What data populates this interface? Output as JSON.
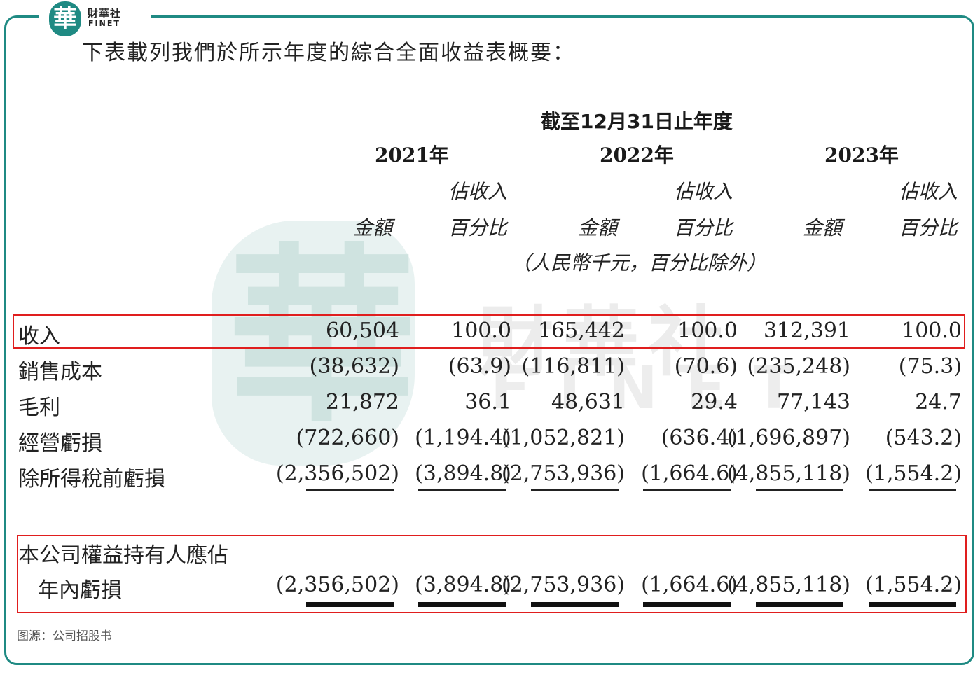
{
  "brand": {
    "logo_char": "華",
    "name_cn": "財華社",
    "name_en": "FINET"
  },
  "watermark": {
    "char": "華",
    "cn": "財華社",
    "en": "FINET"
  },
  "intro": "下表載列我們於所示年度的綜合全面收益表概要：",
  "period_header": "截至12月31日止年度",
  "years": [
    "2021年",
    "2022年",
    "2023年"
  ],
  "col_labels": {
    "pct_line1": "佔收入",
    "pct_line2": "百分比",
    "amount": "金額"
  },
  "unit_note": "（人民幣千元，百分比除外）",
  "rows": [
    {
      "label": "收入",
      "values": [
        "60,504",
        "100.0",
        "165,442",
        "100.0",
        "312,391",
        "100.0"
      ]
    },
    {
      "label": "銷售成本",
      "values": [
        "(38,632)",
        "(63.9)",
        "(116,811)",
        "(70.6)",
        "(235,248)",
        "(75.3)"
      ]
    },
    {
      "label": "毛利",
      "values": [
        "21,872",
        "36.1",
        "48,631",
        "29.4",
        "77,143",
        "24.7"
      ]
    },
    {
      "label": "經營虧損",
      "values": [
        "(722,660)",
        "(1,194.4)",
        "(1,052,821)",
        "(636.4)",
        "(1,696,897)",
        "(543.2)"
      ]
    },
    {
      "label": "除所得稅前虧損",
      "values": [
        "(2,356,502)",
        "(3,894.8)",
        "(2,753,936)",
        "(1,664.6)",
        "(4,855,118)",
        "(1,554.2)"
      ]
    }
  ],
  "final_row": {
    "label_line1": "本公司權益持有人應佔",
    "label_line2": "年內虧損",
    "values": [
      "(2,356,502)",
      "(3,894.8)",
      "(2,753,936)",
      "(1,664.6)",
      "(4,855,118)",
      "(1,554.2)"
    ]
  },
  "source": "图源：公司招股书",
  "colors": {
    "frame": "#1f8a83",
    "highlight": "#e01e1e"
  }
}
